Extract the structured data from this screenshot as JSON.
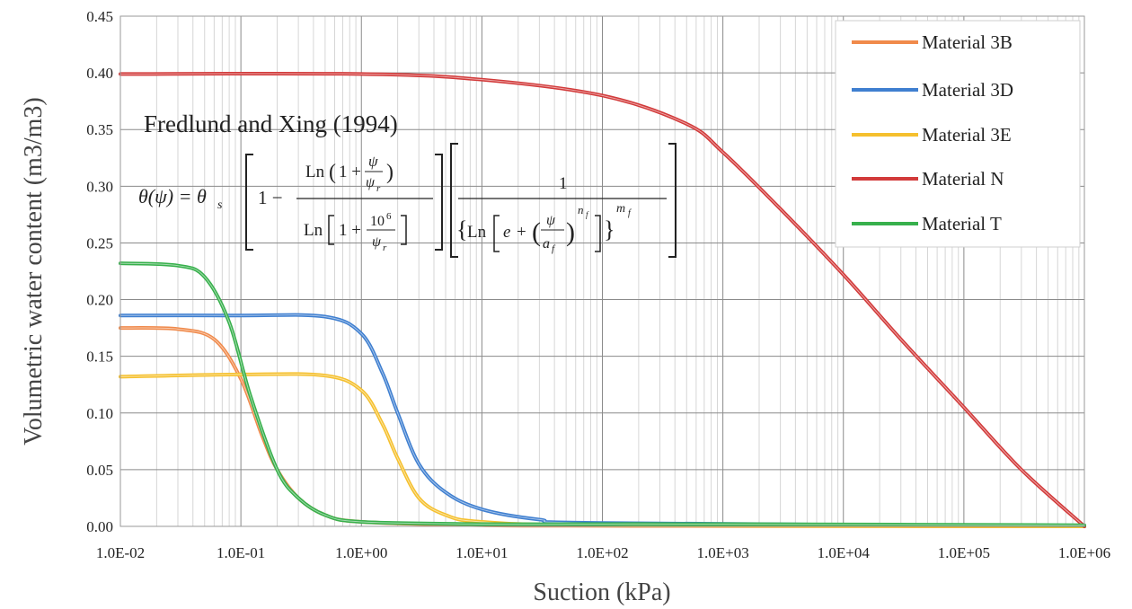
{
  "chart_data": {
    "type": "line",
    "xscale": "log",
    "xlim": [
      0.01,
      1000000
    ],
    "ylim": [
      0,
      0.45
    ],
    "x_ticks": [
      "1.0E-02",
      "1.0E-01",
      "1.0E+00",
      "1.0E+01",
      "1.0E+02",
      "1.0E+03",
      "1.0E+04",
      "1.0E+05",
      "1.0E+06"
    ],
    "y_ticks": [
      "0.00",
      "0.05",
      "0.10",
      "0.15",
      "0.20",
      "0.25",
      "0.30",
      "0.35",
      "0.40",
      "0.45"
    ],
    "xlabel": "Suction (kPa)",
    "ylabel": "Volumetric water content (m3/m3)",
    "grid": true,
    "legend_position": "top-right",
    "annotation": {
      "title": "Fredlund and Xing (1994)"
    },
    "series": [
      {
        "name": "Material 3B",
        "color": "#f08a4b",
        "x": [
          0.01,
          0.03,
          0.06,
          0.1,
          0.15,
          0.2,
          0.3,
          0.5,
          1,
          10,
          100,
          1000,
          1000000
        ],
        "y": [
          0.175,
          0.174,
          0.165,
          0.13,
          0.08,
          0.05,
          0.025,
          0.01,
          0.004,
          0.001,
          0.0005,
          0.0003,
          0.0
        ]
      },
      {
        "name": "Material 3D",
        "color": "#3f7fd0",
        "x": [
          0.01,
          0.1,
          0.5,
          1,
          1.5,
          2,
          3,
          5,
          10,
          30,
          100,
          1000000
        ],
        "y": [
          0.186,
          0.186,
          0.185,
          0.17,
          0.135,
          0.1,
          0.055,
          0.03,
          0.015,
          0.006,
          0.003,
          0.0
        ]
      },
      {
        "name": "Material 3E",
        "color": "#f5c02e",
        "x": [
          0.01,
          0.1,
          0.5,
          1,
          1.5,
          2,
          3,
          5,
          10,
          100,
          1000000
        ],
        "y": [
          0.132,
          0.134,
          0.133,
          0.12,
          0.09,
          0.06,
          0.025,
          0.01,
          0.004,
          0.001,
          0.0
        ]
      },
      {
        "name": "Material N",
        "color": "#d23a3a",
        "x": [
          0.01,
          1,
          10,
          100,
          500,
          1000,
          3000,
          10000,
          30000,
          100000,
          300000,
          1000000
        ],
        "y": [
          0.399,
          0.399,
          0.394,
          0.38,
          0.355,
          0.33,
          0.28,
          0.222,
          0.165,
          0.105,
          0.05,
          0.0
        ]
      },
      {
        "name": "Material T",
        "color": "#37b04c",
        "x": [
          0.01,
          0.03,
          0.05,
          0.08,
          0.12,
          0.2,
          0.3,
          0.5,
          1,
          10,
          100,
          1000,
          1000000
        ],
        "y": [
          0.232,
          0.23,
          0.22,
          0.18,
          0.115,
          0.05,
          0.025,
          0.01,
          0.004,
          0.002,
          0.002,
          0.002,
          0.001
        ]
      }
    ]
  }
}
